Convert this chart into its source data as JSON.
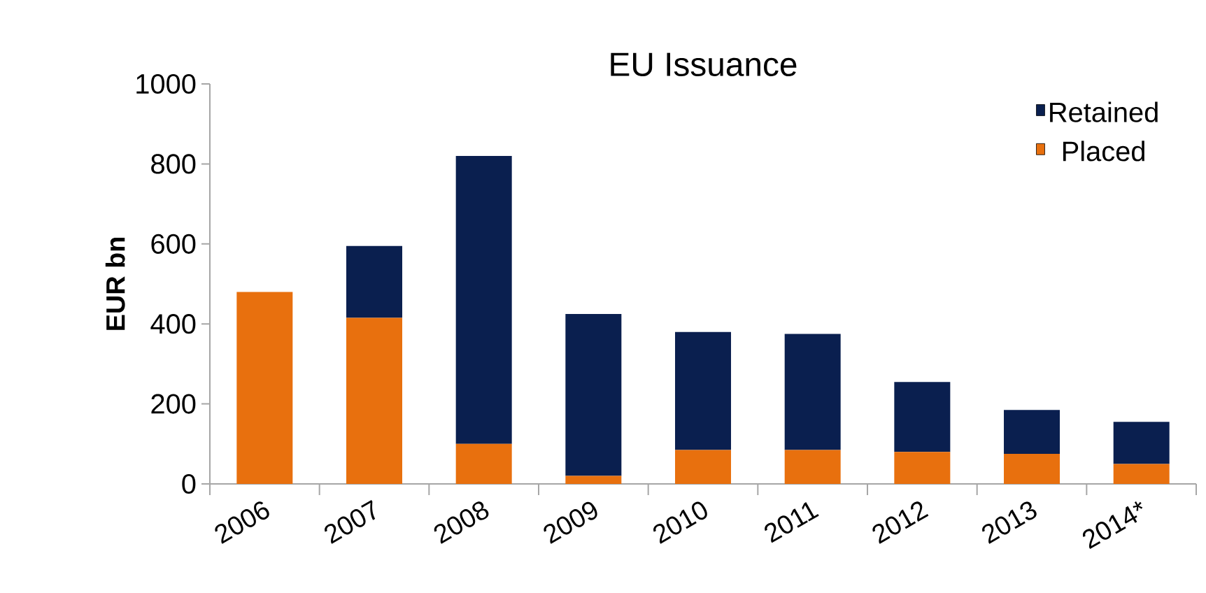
{
  "chart_data": {
    "type": "bar",
    "title": "EU Issuance",
    "ylabel": "EUR bn",
    "stacked": true,
    "legend": "top right",
    "categories": [
      "2006",
      "2007",
      "2008",
      "2009",
      "2010",
      "2011",
      "2012",
      "2013",
      "2014*"
    ],
    "series": [
      {
        "name": "Placed",
        "color": "#e8700e",
        "values": [
          480,
          415,
          100,
          20,
          85,
          85,
          80,
          75,
          50
        ]
      },
      {
        "name": "Retained",
        "color": "#0a1f4f",
        "values": [
          0,
          180,
          720,
          405,
          295,
          290,
          175,
          110,
          105
        ]
      }
    ],
    "ylim": [
      0,
      1000
    ],
    "yticks": [
      0,
      200,
      400,
      600,
      800,
      1000
    ]
  }
}
